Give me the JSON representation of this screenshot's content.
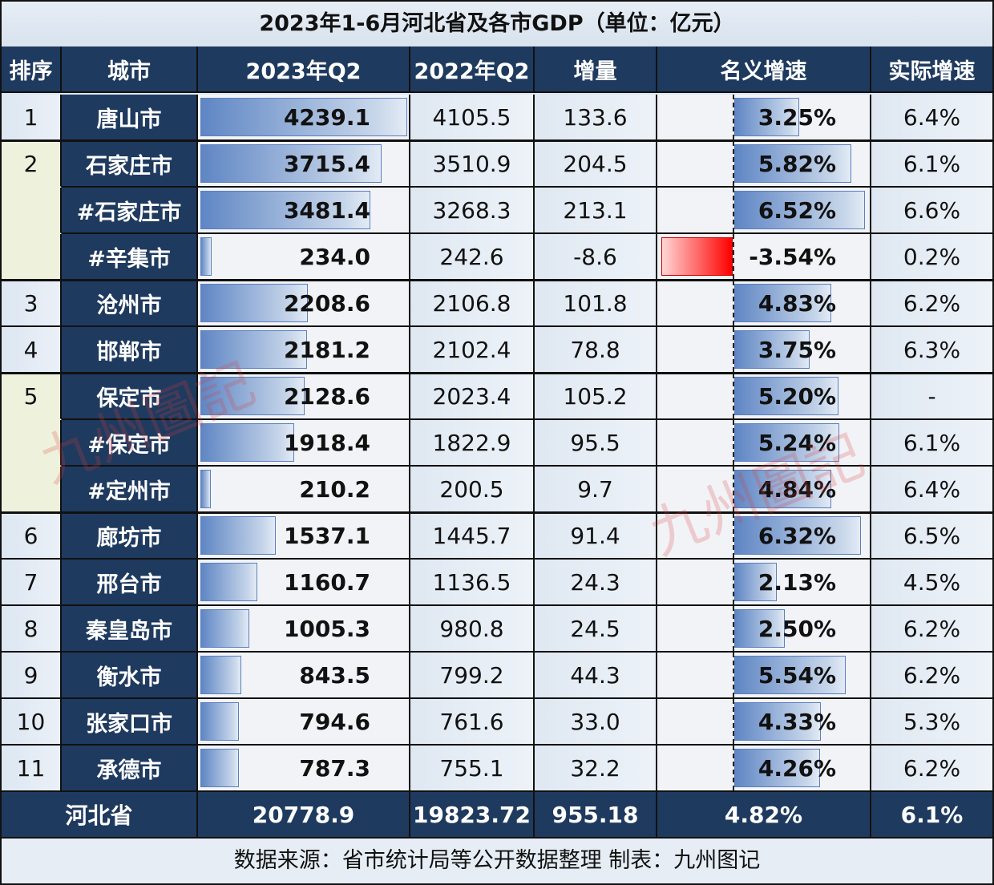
{
  "title": "2023年1-6月河北省及各市GDP（单位：亿元）",
  "headers": {
    "rank": "排序",
    "city": "城市",
    "gdp_2023q2": "2023年Q2",
    "gdp_2022q2": "2022年Q2",
    "increase": "增量",
    "nominal_growth": "名义增速",
    "real_growth": "实际增速"
  },
  "rows": [
    {
      "rank": "1",
      "city": "唐山市",
      "v23": "4239.1",
      "v22": "4105.5",
      "inc": "133.6",
      "nom": "3.25%",
      "real": "6.4%"
    },
    {
      "rank": "2",
      "city": "石家庄市",
      "v23": "3715.4",
      "v22": "3510.9",
      "inc": "204.5",
      "nom": "5.82%",
      "real": "6.1%"
    },
    {
      "rank": "",
      "city": "#石家庄市",
      "v23": "3481.4",
      "v22": "3268.3",
      "inc": "213.1",
      "nom": "6.52%",
      "real": "6.6%"
    },
    {
      "rank": "",
      "city": "#辛集市",
      "v23": "234.0",
      "v22": "242.6",
      "inc": "-8.6",
      "nom": "-3.54%",
      "real": "0.2%"
    },
    {
      "rank": "3",
      "city": "沧州市",
      "v23": "2208.6",
      "v22": "2106.8",
      "inc": "101.8",
      "nom": "4.83%",
      "real": "6.2%"
    },
    {
      "rank": "4",
      "city": "邯郸市",
      "v23": "2181.2",
      "v22": "2102.4",
      "inc": "78.8",
      "nom": "3.75%",
      "real": "6.3%"
    },
    {
      "rank": "5",
      "city": "保定市",
      "v23": "2128.6",
      "v22": "2023.4",
      "inc": "105.2",
      "nom": "5.20%",
      "real": "-"
    },
    {
      "rank": "",
      "city": "#保定市",
      "v23": "1918.4",
      "v22": "1822.9",
      "inc": "95.5",
      "nom": "5.24%",
      "real": "6.1%"
    },
    {
      "rank": "",
      "city": "#定州市",
      "v23": "210.2",
      "v22": "200.5",
      "inc": "9.7",
      "nom": "4.84%",
      "real": "6.4%"
    },
    {
      "rank": "6",
      "city": "廊坊市",
      "v23": "1537.1",
      "v22": "1445.7",
      "inc": "91.4",
      "nom": "6.32%",
      "real": "6.5%"
    },
    {
      "rank": "7",
      "city": "邢台市",
      "v23": "1160.7",
      "v22": "1136.5",
      "inc": "24.3",
      "nom": "2.13%",
      "real": "4.5%"
    },
    {
      "rank": "8",
      "city": "秦皇岛市",
      "v23": "1005.3",
      "v22": "980.8",
      "inc": "24.5",
      "nom": "2.50%",
      "real": "6.2%"
    },
    {
      "rank": "9",
      "city": "衡水市",
      "v23": "843.5",
      "v22": "799.2",
      "inc": "44.3",
      "nom": "5.54%",
      "real": "6.2%"
    },
    {
      "rank": "10",
      "city": "张家口市",
      "v23": "794.6",
      "v22": "761.6",
      "inc": "33.0",
      "nom": "4.33%",
      "real": "5.3%"
    },
    {
      "rank": "11",
      "city": "承德市",
      "v23": "787.3",
      "v22": "755.1",
      "inc": "32.2",
      "nom": "4.26%",
      "real": "6.2%"
    }
  ],
  "total": {
    "city": "河北省",
    "v23": "20778.9",
    "v22": "19823.72",
    "inc": "955.18",
    "nom": "4.82%",
    "real": "6.1%"
  },
  "footer": "数据来源：省市统计局等公开数据整理    制表：九州图记",
  "watermark": "九州圖記",
  "colors": {
    "header_bg": "#1f3a5f",
    "bar_positive": "#5f86c4",
    "bar_negative": "#ff0000",
    "rank_group_highlight": "#eef2dc"
  },
  "chart_data": {
    "type": "table",
    "title": "2023年1-6月河北省及各市GDP（单位：亿元）",
    "columns": [
      "排序",
      "城市",
      "2023年Q2",
      "2022年Q2",
      "增量",
      "名义增速",
      "实际增速"
    ],
    "categories": [
      "唐山市",
      "石家庄市",
      "#石家庄市",
      "#辛集市",
      "沧州市",
      "邯郸市",
      "保定市",
      "#保定市",
      "#定州市",
      "廊坊市",
      "邢台市",
      "秦皇岛市",
      "衡水市",
      "张家口市",
      "承德市"
    ],
    "series": [
      {
        "name": "2023年Q2",
        "values": [
          4239.1,
          3715.4,
          3481.4,
          234.0,
          2208.6,
          2181.2,
          2128.6,
          1918.4,
          210.2,
          1537.1,
          1160.7,
          1005.3,
          843.5,
          794.6,
          787.3
        ]
      },
      {
        "name": "2022年Q2",
        "values": [
          4105.5,
          3510.9,
          3268.3,
          242.6,
          2106.8,
          2102.4,
          2023.4,
          1822.9,
          200.5,
          1445.7,
          1136.5,
          980.8,
          799.2,
          761.6,
          755.1
        ]
      },
      {
        "name": "增量",
        "values": [
          133.6,
          204.5,
          213.1,
          -8.6,
          101.8,
          78.8,
          105.2,
          95.5,
          9.7,
          91.4,
          24.3,
          24.5,
          44.3,
          33.0,
          32.2
        ]
      },
      {
        "name": "名义增速(%)",
        "values": [
          3.25,
          5.82,
          6.52,
          -3.54,
          4.83,
          3.75,
          5.2,
          5.24,
          4.84,
          6.32,
          2.13,
          2.5,
          5.54,
          4.33,
          4.26
        ]
      },
      {
        "name": "实际增速(%)",
        "values": [
          6.4,
          6.1,
          6.6,
          0.2,
          6.2,
          6.3,
          null,
          6.1,
          6.4,
          6.5,
          4.5,
          6.2,
          6.2,
          5.3,
          6.2
        ]
      }
    ],
    "total": {
      "name": "河北省",
      "2023年Q2": 20778.9,
      "2022年Q2": 19823.72,
      "增量": 955.18,
      "名义增速": 4.82,
      "实际增速": 6.1
    },
    "ranks": [
      1,
      2,
      null,
      null,
      3,
      4,
      5,
      null,
      null,
      6,
      7,
      8,
      9,
      10,
      11
    ],
    "source": "数据来源：省市统计局等公开数据整理",
    "author": "制表：九州图记"
  }
}
